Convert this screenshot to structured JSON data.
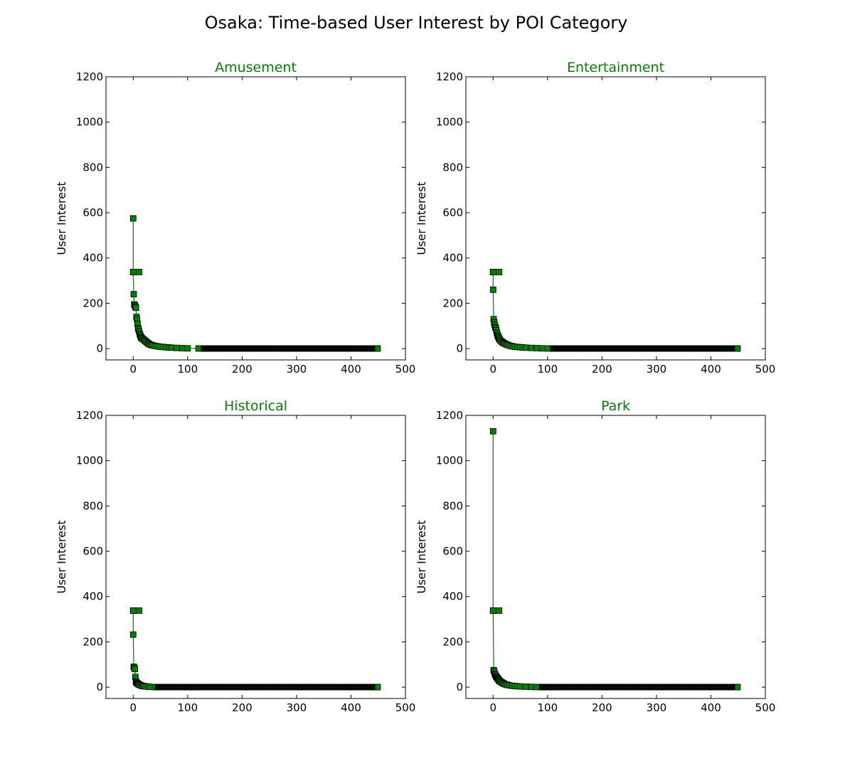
{
  "figure": {
    "title": "Osaka: Time-based User Interest by POI Category"
  },
  "chart_data": [
    {
      "type": "line",
      "title": "Amusement",
      "xlabel": "",
      "ylabel": "User Interest",
      "xlim": [
        -50,
        500
      ],
      "ylim": [
        -50,
        1200
      ],
      "xticks": [
        0,
        100,
        200,
        300,
        400,
        500
      ],
      "yticks": [
        0,
        200,
        400,
        600,
        800,
        1000,
        1200
      ],
      "color": "#008000",
      "marker": "square",
      "head": [
        [
          0,
          575
        ],
        [
          0,
          338
        ],
        [
          1,
          240
        ],
        [
          2,
          195
        ],
        [
          3,
          190
        ],
        [
          4,
          185
        ],
        [
          5,
          180
        ],
        [
          6,
          140
        ],
        [
          7,
          130
        ],
        [
          8,
          110
        ],
        [
          9,
          90
        ],
        [
          10,
          85
        ],
        [
          11,
          75
        ],
        [
          12,
          65
        ],
        [
          13,
          58
        ],
        [
          14,
          52
        ],
        [
          15,
          48
        ],
        [
          16,
          45
        ],
        [
          18,
          42
        ],
        [
          20,
          38
        ],
        [
          22,
          34
        ],
        [
          24,
          30
        ],
        [
          26,
          26
        ],
        [
          28,
          22
        ],
        [
          30,
          19
        ],
        [
          33,
          16
        ],
        [
          36,
          14
        ],
        [
          40,
          12
        ],
        [
          45,
          10
        ],
        [
          50,
          8
        ],
        [
          55,
          7
        ],
        [
          60,
          6
        ],
        [
          65,
          5
        ],
        [
          70,
          4
        ],
        [
          80,
          3
        ],
        [
          90,
          2
        ],
        [
          100,
          1
        ],
        [
          120,
          0.5
        ]
      ],
      "tail_flat": {
        "from": 130,
        "to": 449,
        "value": 0
      },
      "extra_points": [
        [
          0,
          338
        ],
        [
          11,
          338
        ]
      ]
    },
    {
      "type": "line",
      "title": "Entertainment",
      "xlabel": "",
      "ylabel": "User Interest",
      "xlim": [
        -50,
        500
      ],
      "ylim": [
        -50,
        1200
      ],
      "xticks": [
        0,
        100,
        200,
        300,
        400,
        500
      ],
      "yticks": [
        0,
        200,
        400,
        600,
        800,
        1000,
        1200
      ],
      "color": "#008000",
      "marker": "square",
      "head": [
        [
          0,
          338
        ],
        [
          0,
          260
        ],
        [
          1,
          130
        ],
        [
          2,
          115
        ],
        [
          3,
          105
        ],
        [
          4,
          95
        ],
        [
          5,
          90
        ],
        [
          6,
          80
        ],
        [
          7,
          70
        ],
        [
          8,
          60
        ],
        [
          9,
          55
        ],
        [
          10,
          50
        ],
        [
          11,
          45
        ],
        [
          12,
          40
        ],
        [
          14,
          35
        ],
        [
          16,
          30
        ],
        [
          18,
          27
        ],
        [
          20,
          24
        ],
        [
          22,
          21
        ],
        [
          25,
          18
        ],
        [
          28,
          15
        ],
        [
          32,
          12
        ],
        [
          36,
          10
        ],
        [
          40,
          8
        ],
        [
          45,
          7
        ],
        [
          50,
          6
        ],
        [
          55,
          5
        ],
        [
          60,
          4
        ],
        [
          70,
          3
        ],
        [
          80,
          2
        ],
        [
          90,
          1
        ],
        [
          100,
          0.5
        ]
      ],
      "tail_flat": {
        "from": 110,
        "to": 449,
        "value": 0
      },
      "extra_points": [
        [
          0,
          338
        ],
        [
          11,
          338
        ]
      ]
    },
    {
      "type": "line",
      "title": "Historical",
      "xlabel": "",
      "ylabel": "User Interest",
      "xlim": [
        -50,
        500
      ],
      "ylim": [
        -50,
        1200
      ],
      "xticks": [
        0,
        100,
        200,
        300,
        400,
        500
      ],
      "yticks": [
        0,
        200,
        400,
        600,
        800,
        1000,
        1200
      ],
      "color": "#008000",
      "marker": "square",
      "head": [
        [
          0,
          338
        ],
        [
          0,
          232
        ],
        [
          1,
          90
        ],
        [
          2,
          85
        ],
        [
          3,
          80
        ],
        [
          4,
          45
        ],
        [
          5,
          25
        ],
        [
          6,
          20
        ],
        [
          7,
          18
        ],
        [
          8,
          16
        ],
        [
          9,
          14
        ],
        [
          10,
          12
        ],
        [
          12,
          10
        ],
        [
          14,
          8
        ],
        [
          16,
          6
        ],
        [
          18,
          5
        ],
        [
          20,
          4
        ],
        [
          24,
          3
        ],
        [
          28,
          2
        ],
        [
          32,
          1
        ],
        [
          40,
          0.5
        ]
      ],
      "tail_flat": {
        "from": 45,
        "to": 449,
        "value": 0
      },
      "extra_points": [
        [
          0,
          338
        ],
        [
          11,
          338
        ]
      ]
    },
    {
      "type": "line",
      "title": "Park",
      "xlabel": "",
      "ylabel": "User Interest",
      "xlim": [
        -50,
        500
      ],
      "ylim": [
        -50,
        1200
      ],
      "xticks": [
        0,
        100,
        200,
        300,
        400,
        500
      ],
      "yticks": [
        0,
        200,
        400,
        600,
        800,
        1000,
        1200
      ],
      "color": "#008000",
      "marker": "square",
      "head": [
        [
          0,
          1130
        ],
        [
          0,
          338
        ],
        [
          1,
          75
        ],
        [
          2,
          70
        ],
        [
          3,
          60
        ],
        [
          4,
          55
        ],
        [
          5,
          50
        ],
        [
          6,
          45
        ],
        [
          7,
          42
        ],
        [
          8,
          40
        ],
        [
          9,
          36
        ],
        [
          10,
          33
        ],
        [
          11,
          30
        ],
        [
          12,
          27
        ],
        [
          14,
          24
        ],
        [
          16,
          21
        ],
        [
          18,
          18
        ],
        [
          20,
          15
        ],
        [
          23,
          12
        ],
        [
          26,
          10
        ],
        [
          30,
          8
        ],
        [
          35,
          6
        ],
        [
          40,
          5
        ],
        [
          45,
          4
        ],
        [
          50,
          3
        ],
        [
          60,
          2
        ],
        [
          70,
          1
        ],
        [
          80,
          0.5
        ]
      ],
      "tail_flat": {
        "from": 90,
        "to": 449,
        "value": 0
      },
      "extra_points": [
        [
          0,
          338
        ],
        [
          11,
          338
        ]
      ]
    }
  ]
}
